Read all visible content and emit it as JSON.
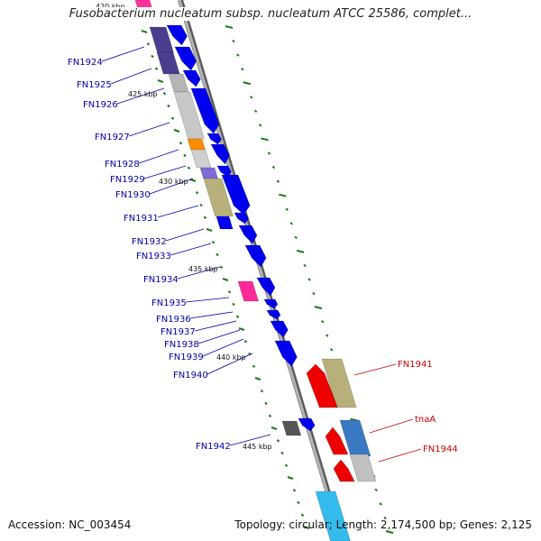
{
  "title": "Fusobacterium nucleatum subsp. nucleatum ATCC 25586, complet...",
  "accession": "Accession: NC_003454",
  "summary": "Topology: circular; Length: 2,174,500 bp; Genes: 2,125",
  "colors": {
    "backbone": "#8c8c8c",
    "forward_gene": "#0000ee",
    "reverse_gene": "#ee0000",
    "ticks": "#1a7a1a",
    "label_forward": "#0000aa",
    "label_reverse": "#cc0000"
  },
  "scale_labels": [
    "420 kbp",
    "425 kbp",
    "430 kbp",
    "435 kbp",
    "440 kbp",
    "445 kbp"
  ],
  "gene_labels_forward": [
    "FN1924",
    "FN1925",
    "FN1926",
    "FN1927",
    "FN1928",
    "FN1929",
    "FN1930",
    "FN1931",
    "FN1932",
    "FN1933",
    "FN1934",
    "FN1935",
    "FN1936",
    "FN1937",
    "FN1938",
    "FN1939",
    "FN1940",
    "FN1942"
  ],
  "gene_labels_reverse": [
    "FN1941",
    "tnaA",
    "FN1944"
  ]
}
